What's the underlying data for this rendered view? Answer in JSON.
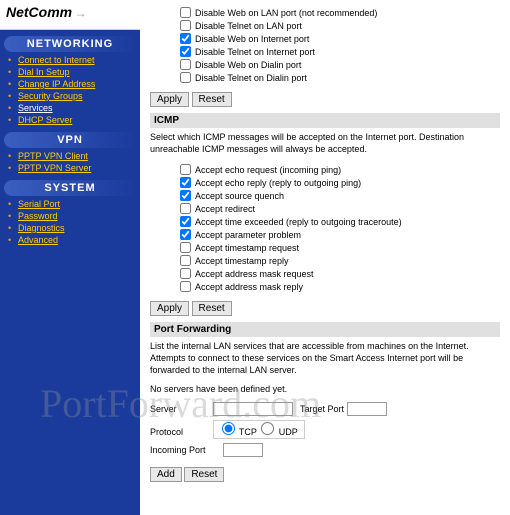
{
  "logo": {
    "text": "NetComm",
    "arrow": "→"
  },
  "nav": {
    "networking": {
      "header": "NETWORKING",
      "items": [
        {
          "label": "Connect to Internet",
          "active": false
        },
        {
          "label": "Dial In Setup",
          "active": false
        },
        {
          "label": "Change IP Address",
          "active": false
        },
        {
          "label": "Security Groups",
          "active": false
        },
        {
          "label": "Services",
          "active": true
        },
        {
          "label": "DHCP Server",
          "active": false
        }
      ]
    },
    "vpn": {
      "header": "VPN",
      "items": [
        {
          "label": "PPTP VPN Client",
          "active": false
        },
        {
          "label": "PPTP VPN Server",
          "active": false
        }
      ]
    },
    "system": {
      "header": "SYSTEM",
      "items": [
        {
          "label": "Serial Port",
          "active": false
        },
        {
          "label": "Password",
          "active": false
        },
        {
          "label": "Diagnostics",
          "active": false
        },
        {
          "label": "Advanced",
          "active": false
        }
      ]
    }
  },
  "disable": {
    "items": [
      {
        "label": "Disable Web on LAN port (not recommended)",
        "checked": false
      },
      {
        "label": "Disable Telnet on LAN port",
        "checked": false
      },
      {
        "label": "Disable Web on Internet port",
        "checked": true
      },
      {
        "label": "Disable Telnet on Internet port",
        "checked": true
      },
      {
        "label": "Disable Web on Dialin port",
        "checked": false
      },
      {
        "label": "Disable Telnet on Dialin port",
        "checked": false
      }
    ]
  },
  "buttons": {
    "apply": "Apply",
    "reset": "Reset",
    "add": "Add"
  },
  "icmp": {
    "header": "ICMP",
    "desc": "Select which ICMP messages will be accepted on the Internet port. Destination unreachable ICMP messages will always be accepted.",
    "items": [
      {
        "label": "Accept echo request (incoming ping)",
        "checked": false
      },
      {
        "label": "Accept echo reply (reply to outgoing ping)",
        "checked": true
      },
      {
        "label": "Accept source quench",
        "checked": true
      },
      {
        "label": "Accept redirect",
        "checked": false
      },
      {
        "label": "Accept time exceeded (reply to outgoing traceroute)",
        "checked": true
      },
      {
        "label": "Accept parameter problem",
        "checked": true
      },
      {
        "label": "Accept timestamp request",
        "checked": false
      },
      {
        "label": "Accept timestamp reply",
        "checked": false
      },
      {
        "label": "Accept address mask request",
        "checked": false
      },
      {
        "label": "Accept address mask reply",
        "checked": false
      }
    ]
  },
  "portfwd": {
    "header": "Port Forwarding",
    "desc": "List the internal LAN services that are accessible from machines on the Internet. Attempts to connect to these services on the Smart Access Internet port will be forwarded to the internal LAN server.",
    "nodef": "No servers have been defined yet.",
    "server_label": "Server",
    "target_label": "Target Port",
    "protocol_label": "Protocol",
    "tcp_label": "TCP",
    "udp_label": "UDP",
    "incoming_label": "Incoming Port"
  },
  "watermark": "PortForward.com"
}
